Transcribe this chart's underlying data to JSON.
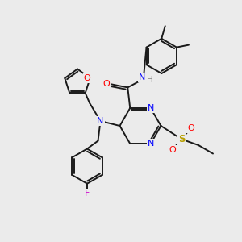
{
  "background_color": "#ebebeb",
  "bond_color": "#1a1a1a",
  "figsize": [
    3.0,
    3.0
  ],
  "dpi": 100,
  "xlim": [
    0,
    10
  ],
  "ylim": [
    0,
    10
  ]
}
